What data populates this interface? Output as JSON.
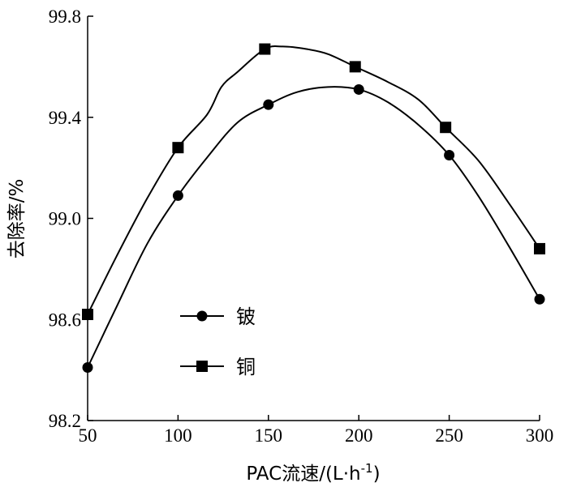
{
  "chart_data": {
    "type": "line",
    "xlabel": "PAC流速/(L·h",
    "xlabel_unit_sup": "-1",
    "xlabel_close": ")",
    "ylabel": "去除率/%",
    "xlim": [
      50,
      300
    ],
    "ylim": [
      98.2,
      99.8
    ],
    "xticks": [
      50,
      100,
      150,
      200,
      250,
      300
    ],
    "yticks": [
      98.2,
      98.6,
      99.0,
      99.4,
      99.8
    ],
    "xtick_labels": [
      "50",
      "100",
      "150",
      "200",
      "250",
      "300"
    ],
    "ytick_labels": [
      "98.2",
      "98.6",
      "99.0",
      "99.4",
      "99.8"
    ],
    "grid": false,
    "legend_position": "lower-center",
    "series": [
      {
        "name": "铍",
        "marker": "circle",
        "color": "#000000",
        "points": [
          [
            50,
            98.41
          ],
          [
            100,
            99.09
          ],
          [
            150,
            99.45
          ],
          [
            200,
            99.51
          ],
          [
            250,
            99.25
          ],
          [
            300,
            98.68
          ]
        ],
        "curve": [
          [
            50,
            98.41
          ],
          [
            66,
            98.65
          ],
          [
            83,
            98.9
          ],
          [
            100,
            99.09
          ],
          [
            116,
            99.24
          ],
          [
            133,
            99.38
          ],
          [
            150,
            99.45
          ],
          [
            166,
            99.5
          ],
          [
            183,
            99.52
          ],
          [
            200,
            99.51
          ],
          [
            216,
            99.46
          ],
          [
            233,
            99.37
          ],
          [
            250,
            99.25
          ],
          [
            266,
            99.09
          ],
          [
            283,
            98.89
          ],
          [
            300,
            98.68
          ]
        ]
      },
      {
        "name": "铜",
        "marker": "square",
        "color": "#000000",
        "points": [
          [
            50,
            98.62
          ],
          [
            100,
            99.28
          ],
          [
            148,
            99.67
          ],
          [
            198,
            99.6
          ],
          [
            248,
            99.36
          ],
          [
            300,
            98.88
          ]
        ],
        "curve": [
          [
            50,
            98.62
          ],
          [
            66,
            98.85
          ],
          [
            83,
            99.08
          ],
          [
            100,
            99.28
          ],
          [
            116,
            99.41
          ],
          [
            124,
            99.52
          ],
          [
            133,
            99.58
          ],
          [
            148,
            99.67
          ],
          [
            158,
            99.68
          ],
          [
            171,
            99.67
          ],
          [
            183,
            99.65
          ],
          [
            198,
            99.6
          ],
          [
            216,
            99.54
          ],
          [
            233,
            99.47
          ],
          [
            248,
            99.36
          ],
          [
            266,
            99.23
          ],
          [
            283,
            99.06
          ],
          [
            300,
            98.88
          ]
        ]
      }
    ]
  }
}
